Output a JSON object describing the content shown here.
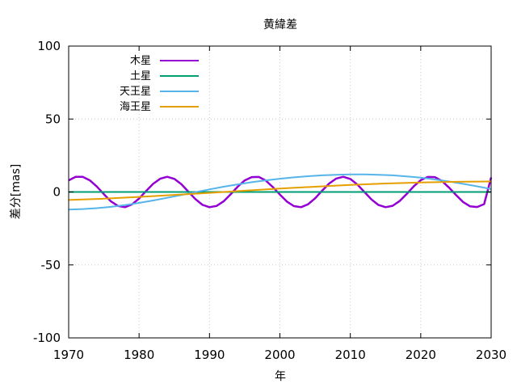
{
  "chart_data": {
    "type": "line",
    "title": "黄緯差",
    "xlabel": "年",
    "ylabel": "差分[mas]",
    "xlim": [
      1970,
      2030
    ],
    "ylim": [
      -100,
      100
    ],
    "xticks": [
      1970,
      1980,
      1990,
      2000,
      2010,
      2020,
      2030
    ],
    "yticks": [
      -100,
      -50,
      0,
      50,
      100
    ],
    "grid": true,
    "legend_position": "top-left",
    "series": [
      {
        "name": "木星",
        "color": "#9400d3",
        "x": [
          1970,
          1971,
          1972,
          1973,
          1974,
          1975,
          1976,
          1977,
          1978,
          1979,
          1980,
          1981,
          1982,
          1983,
          1984,
          1985,
          1986,
          1987,
          1988,
          1989,
          1990,
          1991,
          1992,
          1993,
          1994,
          1995,
          1996,
          1997,
          1998,
          1999,
          2000,
          2001,
          2002,
          2003,
          2004,
          2005,
          2006,
          2007,
          2008,
          2009,
          2010,
          2011,
          2012,
          2013,
          2014,
          2015,
          2016,
          2017,
          2018,
          2019,
          2020,
          2021,
          2022,
          2023,
          2024,
          2025,
          2026,
          2027,
          2028,
          2029,
          2030
        ],
        "y": [
          8.0,
          10.4,
          10.4,
          8.0,
          3.7,
          -1.5,
          -6.4,
          -9.6,
          -10.4,
          -8.5,
          -4.5,
          0.7,
          5.6,
          9.1,
          10.4,
          9.0,
          5.3,
          0.2,
          -4.9,
          -8.8,
          -10.4,
          -9.6,
          -6.4,
          -1.6,
          3.6,
          7.9,
          10.2,
          10.3,
          7.8,
          3.3,
          -1.8,
          -6.6,
          -9.7,
          -10.4,
          -8.4,
          -4.3,
          0.9,
          5.8,
          9.2,
          10.4,
          8.9,
          5.1,
          0.0,
          -5.1,
          -8.9,
          -10.4,
          -9.5,
          -6.2,
          -1.4,
          3.8,
          8.1,
          10.3,
          10.2,
          7.6,
          3.1,
          -2.0,
          -6.8,
          -9.8,
          -10.3,
          -8.3,
          9.9
        ]
      },
      {
        "name": "土星",
        "color": "#009e73",
        "x": [
          1970,
          2030
        ],
        "y": [
          0,
          0
        ]
      },
      {
        "name": "天王星",
        "color": "#56b4e9",
        "x": [
          1970,
          1972,
          1974,
          1976,
          1978,
          1980,
          1982,
          1984,
          1986,
          1988,
          1990,
          1992,
          1994,
          1996,
          1998,
          2000,
          2002,
          2004,
          2006,
          2008,
          2010,
          2012,
          2014,
          2016,
          2018,
          2020,
          2022,
          2024,
          2026,
          2028,
          2030
        ],
        "y": [
          -12.0,
          -11.7,
          -11.1,
          -10.2,
          -9.0,
          -7.5,
          -5.8,
          -4.0,
          -2.1,
          -0.1,
          1.8,
          3.6,
          5.2,
          6.7,
          8.0,
          9.1,
          10.0,
          10.8,
          11.4,
          11.8,
          12.0,
          12.0,
          11.8,
          11.4,
          10.7,
          9.8,
          8.6,
          7.2,
          5.6,
          3.9,
          2.0
        ]
      },
      {
        "name": "海王星",
        "color": "#e69f00",
        "x": [
          1970,
          1975,
          1980,
          1985,
          1990,
          1995,
          2000,
          2005,
          2010,
          2015,
          2020,
          2025,
          2030
        ],
        "y": [
          -5.5,
          -4.6,
          -3.4,
          -2.0,
          -0.6,
          0.9,
          2.3,
          3.6,
          4.8,
          5.8,
          6.5,
          7.0,
          7.2
        ]
      }
    ]
  }
}
